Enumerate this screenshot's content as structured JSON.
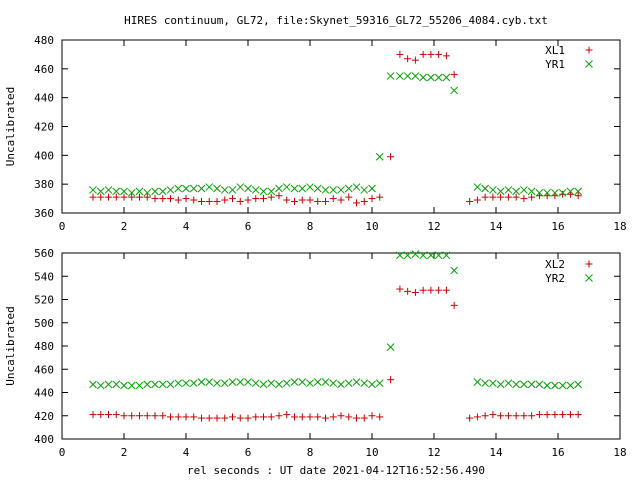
{
  "title": "HIRES continuum, GL72, file:Skynet_59316_GL72_55206_4084.cyb.txt",
  "xlabel": "rel seconds : UT date 2021-04-12T16:52:56.490",
  "chart_data": [
    {
      "type": "scatter",
      "ylabel": "Uncalibrated",
      "xlim": [
        0,
        18
      ],
      "ylim": [
        360,
        480
      ],
      "xticks": [
        0,
        2,
        4,
        6,
        8,
        10,
        12,
        14,
        16,
        18
      ],
      "yticks": [
        360,
        380,
        400,
        420,
        440,
        460,
        480
      ],
      "legend_position": "top-right",
      "series": [
        {
          "name": "XL1",
          "marker": "plus",
          "color": "#cc0000",
          "x": [
            1.0,
            1.25,
            1.5,
            1.75,
            2.0,
            2.25,
            2.5,
            2.75,
            3.0,
            3.25,
            3.5,
            3.75,
            4.0,
            4.25,
            4.5,
            4.75,
            5.0,
            5.25,
            5.5,
            5.75,
            6.0,
            6.25,
            6.5,
            6.75,
            7.0,
            7.25,
            7.5,
            7.75,
            8.0,
            8.25,
            8.5,
            8.75,
            9.0,
            9.25,
            9.5,
            9.75,
            10.0,
            10.25,
            10.6,
            10.9,
            11.15,
            11.4,
            11.65,
            11.9,
            12.15,
            12.4,
            12.65,
            12.9,
            13.15,
            13.4,
            13.65,
            13.9,
            14.15,
            14.4,
            14.65,
            14.9,
            15.15,
            15.4,
            15.65,
            15.9,
            16.15,
            16.4,
            16.65,
            16.9
          ],
          "y": [
            371,
            371,
            371,
            371,
            371,
            371,
            371,
            371,
            370,
            370,
            370,
            369,
            370,
            369,
            368,
            368,
            368,
            369,
            370,
            368,
            369,
            370,
            370,
            371,
            372,
            369,
            368,
            369,
            369,
            368,
            368,
            370,
            369,
            371,
            367,
            368,
            370,
            371,
            399,
            470,
            467,
            466,
            470,
            470,
            470,
            469,
            456,
            null,
            368,
            369,
            371,
            371,
            371,
            371,
            371,
            370,
            371,
            372,
            372,
            372,
            373,
            373,
            372,
            null
          ]
        },
        {
          "name": "YR1",
          "marker": "cross",
          "color": "#00a000",
          "x": [
            1.0,
            1.25,
            1.5,
            1.75,
            2.0,
            2.25,
            2.5,
            2.75,
            3.0,
            3.25,
            3.5,
            3.75,
            4.0,
            4.25,
            4.5,
            4.75,
            5.0,
            5.25,
            5.5,
            5.75,
            6.0,
            6.25,
            6.5,
            6.75,
            7.0,
            7.25,
            7.5,
            7.75,
            8.0,
            8.25,
            8.5,
            8.75,
            9.0,
            9.25,
            9.5,
            9.75,
            10.0,
            10.25,
            10.6,
            10.9,
            11.15,
            11.4,
            11.65,
            11.9,
            12.15,
            12.4,
            12.65,
            12.9,
            13.15,
            13.4,
            13.65,
            13.9,
            14.15,
            14.4,
            14.65,
            14.9,
            15.15,
            15.4,
            15.65,
            15.9,
            16.15,
            16.4,
            16.65,
            16.9
          ],
          "y": [
            376,
            375,
            376,
            375,
            375,
            374,
            375,
            374,
            375,
            375,
            376,
            377,
            377,
            377,
            377,
            378,
            377,
            376,
            376,
            378,
            377,
            376,
            375,
            375,
            377,
            378,
            377,
            377,
            378,
            377,
            376,
            376,
            376,
            377,
            378,
            376,
            377,
            399,
            455,
            455,
            455,
            455,
            454,
            454,
            454,
            454,
            445,
            null,
            null,
            378,
            377,
            376,
            375,
            376,
            375,
            376,
            375,
            374,
            374,
            374,
            374,
            375,
            375,
            null
          ]
        }
      ]
    },
    {
      "type": "scatter",
      "ylabel": "Uncalibrated",
      "xlim": [
        0,
        18
      ],
      "ylim": [
        400,
        560
      ],
      "xticks": [
        0,
        2,
        4,
        6,
        8,
        10,
        12,
        14,
        16,
        18
      ],
      "yticks": [
        400,
        420,
        440,
        460,
        480,
        500,
        520,
        540,
        560
      ],
      "legend_position": "top-right",
      "series": [
        {
          "name": "XL2",
          "marker": "plus",
          "color": "#cc0000",
          "x": [
            1.0,
            1.25,
            1.5,
            1.75,
            2.0,
            2.25,
            2.5,
            2.75,
            3.0,
            3.25,
            3.5,
            3.75,
            4.0,
            4.25,
            4.5,
            4.75,
            5.0,
            5.25,
            5.5,
            5.75,
            6.0,
            6.25,
            6.5,
            6.75,
            7.0,
            7.25,
            7.5,
            7.75,
            8.0,
            8.25,
            8.5,
            8.75,
            9.0,
            9.25,
            9.5,
            9.75,
            10.0,
            10.25,
            10.6,
            10.9,
            11.15,
            11.4,
            11.65,
            11.9,
            12.15,
            12.4,
            12.65,
            12.9,
            13.15,
            13.4,
            13.65,
            13.9,
            14.15,
            14.4,
            14.65,
            14.9,
            15.15,
            15.4,
            15.65,
            15.9,
            16.15,
            16.4,
            16.65,
            16.9
          ],
          "y": [
            421,
            421,
            421,
            421,
            420,
            420,
            420,
            420,
            420,
            420,
            419,
            419,
            419,
            419,
            418,
            418,
            418,
            418,
            419,
            418,
            418,
            419,
            419,
            419,
            420,
            421,
            419,
            419,
            419,
            419,
            418,
            419,
            420,
            419,
            418,
            418,
            420,
            419,
            451,
            529,
            527,
            526,
            528,
            528,
            528,
            528,
            515,
            null,
            418,
            419,
            420,
            421,
            420,
            420,
            420,
            420,
            420,
            421,
            421,
            421,
            421,
            421,
            421,
            null
          ]
        },
        {
          "name": "YR2",
          "marker": "cross",
          "color": "#00a000",
          "x": [
            1.0,
            1.25,
            1.5,
            1.75,
            2.0,
            2.25,
            2.5,
            2.75,
            3.0,
            3.25,
            3.5,
            3.75,
            4.0,
            4.25,
            4.5,
            4.75,
            5.0,
            5.25,
            5.5,
            5.75,
            6.0,
            6.25,
            6.5,
            6.75,
            7.0,
            7.25,
            7.5,
            7.75,
            8.0,
            8.25,
            8.5,
            8.75,
            9.0,
            9.25,
            9.5,
            9.75,
            10.0,
            10.25,
            10.6,
            10.9,
            11.15,
            11.4,
            11.65,
            11.9,
            12.15,
            12.4,
            12.65,
            12.9,
            13.15,
            13.4,
            13.65,
            13.9,
            14.15,
            14.4,
            14.65,
            14.9,
            15.15,
            15.4,
            15.65,
            15.9,
            16.15,
            16.4,
            16.65,
            16.9
          ],
          "y": [
            447,
            446,
            447,
            447,
            446,
            446,
            446,
            447,
            447,
            447,
            447,
            448,
            448,
            448,
            449,
            449,
            448,
            448,
            449,
            449,
            449,
            448,
            447,
            448,
            447,
            448,
            449,
            449,
            448,
            449,
            449,
            448,
            447,
            448,
            449,
            448,
            447,
            448,
            479,
            558,
            558,
            559,
            558,
            558,
            558,
            558,
            545,
            null,
            null,
            449,
            448,
            448,
            447,
            448,
            447,
            447,
            447,
            447,
            446,
            446,
            446,
            446,
            447,
            null
          ]
        }
      ]
    }
  ]
}
